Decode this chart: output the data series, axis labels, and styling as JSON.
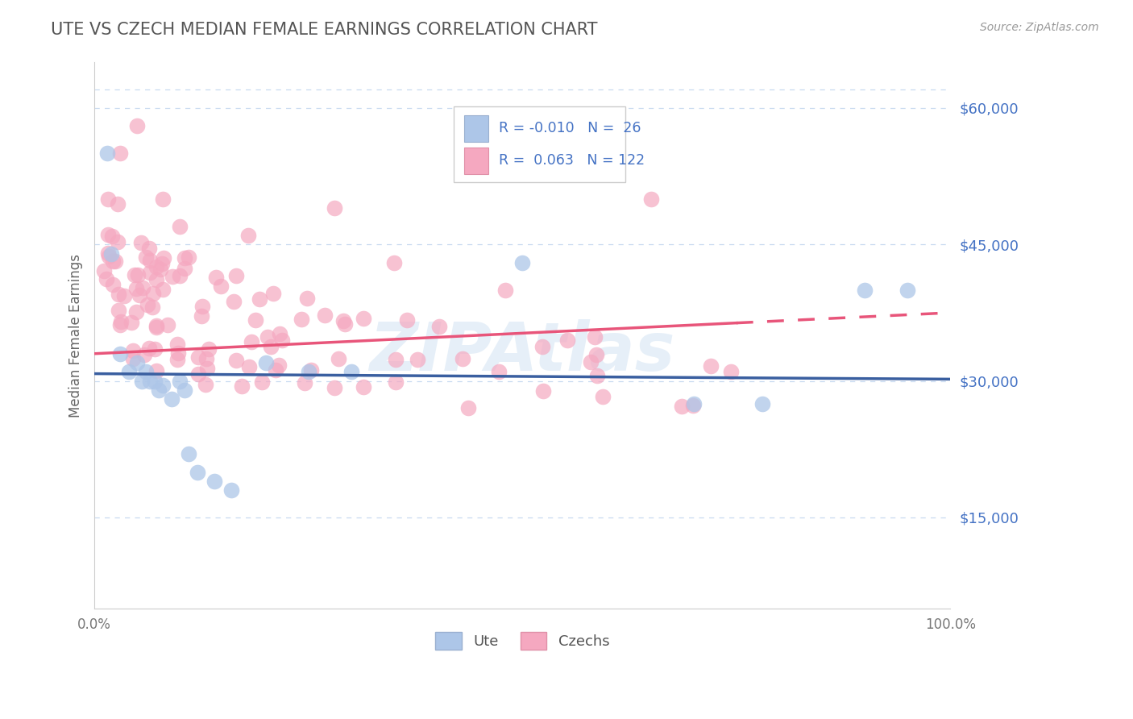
{
  "title": "UTE VS CZECH MEDIAN FEMALE EARNINGS CORRELATION CHART",
  "source": "Source: ZipAtlas.com",
  "ylabel": "Median Female Earnings",
  "xlim": [
    0,
    100
  ],
  "ylim": [
    5000,
    65000
  ],
  "yticks": [
    15000,
    30000,
    45000,
    60000
  ],
  "ytick_labels": [
    "$15,000",
    "$30,000",
    "$45,000",
    "$60,000"
  ],
  "xticks": [
    0,
    10,
    20,
    30,
    40,
    50,
    60,
    70,
    80,
    90,
    100
  ],
  "xtick_labels": [
    "0.0%",
    "",
    "",
    "",
    "",
    "",
    "",
    "",
    "",
    "",
    "100.0%"
  ],
  "ute_color": "#adc6e8",
  "czech_color": "#f5a8c0",
  "ute_line_color": "#3a5fa0",
  "czech_line_color": "#e8557a",
  "ute_R": -0.01,
  "ute_N": 26,
  "czech_R": 0.063,
  "czech_N": 122,
  "legend_label_ute": "Ute",
  "legend_label_czech": "Czechs",
  "watermark": "ZIPAtlas",
  "grid_color": "#c8daf0",
  "title_color": "#555555",
  "source_color": "#999999",
  "ytick_color": "#4472c4",
  "xtick_color": "#777777",
  "ute_line_y0": 30800,
  "ute_line_y1": 30200,
  "czech_line_y0": 33000,
  "czech_line_y1": 37500,
  "czech_dash_start_x": 75,
  "top_grid_y": 62000
}
